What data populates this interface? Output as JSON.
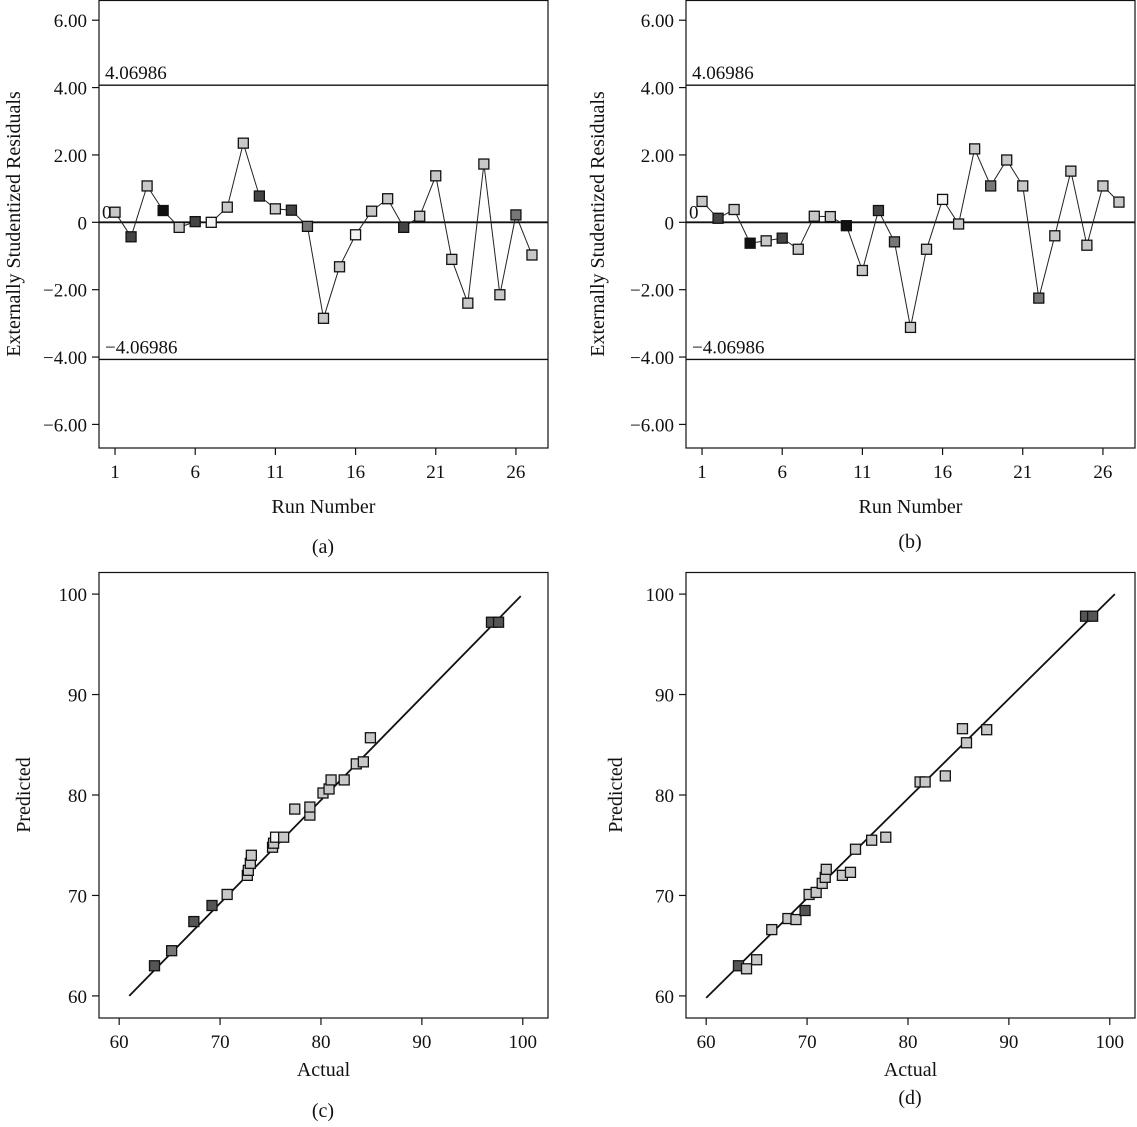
{
  "chart_data": [
    {
      "panel": "a",
      "type": "line",
      "caption": "(a)",
      "xlabel": "Run Number",
      "ylabel": "Externally Studentized Residuals",
      "xlim": [
        0,
        28
      ],
      "ylim": [
        -6.7,
        6.6
      ],
      "xticks": [
        1,
        6,
        11,
        16,
        21,
        26
      ],
      "xtick_labels": [
        "1",
        "6",
        "11",
        "16",
        "21",
        "26"
      ],
      "yticks": [
        6,
        4,
        2,
        0,
        -2,
        -4,
        -6
      ],
      "ytick_labels": [
        "6.00",
        "4.00",
        "2.00",
        "0",
        "-2.00",
        "-4.00",
        "-6.00"
      ],
      "upper_limit": 4.06986,
      "upper_label": "4.06986",
      "lower_limit": -4.06986,
      "lower_label": "−4.06986",
      "zero_label": "0",
      "x": [
        1,
        2,
        3,
        4,
        5,
        6,
        7,
        8,
        9,
        10,
        11,
        12,
        13,
        14,
        15,
        16,
        17,
        18,
        19,
        20,
        21,
        22,
        23,
        24,
        25,
        26,
        27
      ],
      "values": [
        0.3,
        -0.43,
        1.08,
        0.35,
        -0.15,
        0.02,
        0.0,
        0.45,
        2.35,
        0.78,
        0.4,
        0.36,
        -0.12,
        -2.85,
        -1.32,
        -0.37,
        0.33,
        0.7,
        -0.15,
        0.18,
        1.38,
        -1.1,
        -2.4,
        1.73,
        -2.15,
        0.22,
        -0.97
      ],
      "marker_shades": [
        "#c8c8c8",
        "#444444",
        "#c8c8c8",
        "#111111",
        "#c8c8c8",
        "#444444",
        "#f4f4f4",
        "#c8c8c8",
        "#c8c8c8",
        "#444444",
        "#c8c8c8",
        "#444444",
        "#777777",
        "#c8c8c8",
        "#c8c8c8",
        "#f4f4f4",
        "#c8c8c8",
        "#c8c8c8",
        "#444444",
        "#c8c8c8",
        "#c8c8c8",
        "#c8c8c8",
        "#c8c8c8",
        "#c8c8c8",
        "#c8c8c8",
        "#777777",
        "#c8c8c8"
      ]
    },
    {
      "panel": "b",
      "type": "line",
      "caption": "(b)",
      "xlabel": "Run Number",
      "ylabel": "Externally Studentized Residuals",
      "xlim": [
        0,
        28
      ],
      "ylim": [
        -6.7,
        6.6
      ],
      "xticks": [
        1,
        6,
        11,
        16,
        21,
        26
      ],
      "xtick_labels": [
        "1",
        "6",
        "11",
        "16",
        "21",
        "26"
      ],
      "yticks": [
        6,
        4,
        2,
        0,
        -2,
        -4,
        -6
      ],
      "ytick_labels": [
        "6.00",
        "4.00",
        "2.00",
        "0",
        "-2.00",
        "-4.00",
        "-6.00"
      ],
      "upper_limit": 4.06986,
      "upper_label": "4.06986",
      "lower_limit": -4.06986,
      "lower_label": "−4.06986",
      "zero_label": "0",
      "x": [
        1,
        2,
        3,
        4,
        5,
        6,
        7,
        8,
        9,
        10,
        11,
        12,
        13,
        14,
        15,
        16,
        17,
        18,
        19,
        20,
        21,
        22,
        23,
        24,
        25,
        26,
        27
      ],
      "values": [
        0.62,
        0.12,
        0.38,
        -0.62,
        -0.55,
        -0.47,
        -0.8,
        0.18,
        0.17,
        -0.1,
        -1.43,
        0.35,
        -0.58,
        -3.12,
        -0.8,
        0.68,
        -0.05,
        2.18,
        1.08,
        1.85,
        1.08,
        -2.25,
        -0.4,
        1.52,
        -0.68,
        1.08,
        0.6
      ],
      "marker_shades": [
        "#c8c8c8",
        "#444444",
        "#c8c8c8",
        "#111111",
        "#c8c8c8",
        "#444444",
        "#c8c8c8",
        "#c8c8c8",
        "#c8c8c8",
        "#111111",
        "#c8c8c8",
        "#444444",
        "#777777",
        "#c8c8c8",
        "#c8c8c8",
        "#f4f4f4",
        "#c8c8c8",
        "#c8c8c8",
        "#777777",
        "#c8c8c8",
        "#c8c8c8",
        "#777777",
        "#c8c8c8",
        "#c8c8c8",
        "#c8c8c8",
        "#c8c8c8",
        "#c8c8c8"
      ]
    },
    {
      "panel": "c",
      "type": "scatter",
      "caption": "(c)",
      "xlabel": "Actual",
      "ylabel": "Predicted",
      "xlim": [
        58,
        102.5
      ],
      "ylim": [
        57.8,
        102.2
      ],
      "xticks": [
        60,
        70,
        80,
        90,
        100
      ],
      "yticks": [
        60,
        70,
        80,
        90,
        100
      ],
      "line": [
        [
          61,
          60
        ],
        [
          99.8,
          99.8
        ]
      ],
      "points": [
        {
          "x": 63.5,
          "y": 63.0,
          "c": "#555555"
        },
        {
          "x": 65.2,
          "y": 64.5,
          "c": "#777777"
        },
        {
          "x": 67.4,
          "y": 67.4,
          "c": "#555555"
        },
        {
          "x": 69.2,
          "y": 69.0,
          "c": "#555555"
        },
        {
          "x": 70.7,
          "y": 70.1,
          "c": "#c8c8c8"
        },
        {
          "x": 72.7,
          "y": 72.0,
          "c": "#c8c8c8"
        },
        {
          "x": 72.8,
          "y": 72.5,
          "c": "#c8c8c8"
        },
        {
          "x": 73.0,
          "y": 73.2,
          "c": "#c8c8c8"
        },
        {
          "x": 73.1,
          "y": 74.0,
          "c": "#c8c8c8"
        },
        {
          "x": 75.2,
          "y": 74.8,
          "c": "#c8c8c8"
        },
        {
          "x": 75.3,
          "y": 75.2,
          "c": "#c8c8c8"
        },
        {
          "x": 75.5,
          "y": 75.8,
          "c": "#f4f4f4"
        },
        {
          "x": 76.3,
          "y": 75.8,
          "c": "#c8c8c8"
        },
        {
          "x": 77.4,
          "y": 78.6,
          "c": "#c8c8c8"
        },
        {
          "x": 78.9,
          "y": 78.0,
          "c": "#c8c8c8"
        },
        {
          "x": 78.9,
          "y": 78.8,
          "c": "#c8c8c8"
        },
        {
          "x": 80.2,
          "y": 80.2,
          "c": "#c8c8c8"
        },
        {
          "x": 80.8,
          "y": 80.6,
          "c": "#c8c8c8"
        },
        {
          "x": 81.0,
          "y": 81.5,
          "c": "#c8c8c8"
        },
        {
          "x": 82.3,
          "y": 81.5,
          "c": "#c8c8c8"
        },
        {
          "x": 83.5,
          "y": 83.1,
          "c": "#c8c8c8"
        },
        {
          "x": 84.2,
          "y": 83.3,
          "c": "#c8c8c8"
        },
        {
          "x": 84.9,
          "y": 85.7,
          "c": "#c8c8c8"
        },
        {
          "x": 96.9,
          "y": 97.2,
          "c": "#555555"
        },
        {
          "x": 97.6,
          "y": 97.2,
          "c": "#555555"
        }
      ]
    },
    {
      "panel": "d",
      "type": "scatter",
      "caption": "(d)",
      "xlabel": "Actual",
      "ylabel": "Predicted",
      "xlim": [
        58,
        102.5
      ],
      "ylim": [
        57.8,
        102.2
      ],
      "xticks": [
        60,
        70,
        80,
        90,
        100
      ],
      "yticks": [
        60,
        70,
        80,
        90,
        100
      ],
      "line": [
        [
          60,
          59.8
        ],
        [
          100.5,
          100
        ]
      ],
      "points": [
        {
          "x": 63.2,
          "y": 63.0,
          "c": "#555555"
        },
        {
          "x": 64.0,
          "y": 62.7,
          "c": "#c8c8c8"
        },
        {
          "x": 65.0,
          "y": 63.6,
          "c": "#c8c8c8"
        },
        {
          "x": 66.5,
          "y": 66.6,
          "c": "#c8c8c8"
        },
        {
          "x": 68.1,
          "y": 67.7,
          "c": "#c8c8c8"
        },
        {
          "x": 68.9,
          "y": 67.6,
          "c": "#c8c8c8"
        },
        {
          "x": 69.8,
          "y": 68.5,
          "c": "#555555"
        },
        {
          "x": 70.2,
          "y": 70.1,
          "c": "#c8c8c8"
        },
        {
          "x": 70.9,
          "y": 70.3,
          "c": "#c8c8c8"
        },
        {
          "x": 71.5,
          "y": 71.2,
          "c": "#c8c8c8"
        },
        {
          "x": 71.8,
          "y": 71.8,
          "c": "#c8c8c8"
        },
        {
          "x": 71.9,
          "y": 72.6,
          "c": "#c8c8c8"
        },
        {
          "x": 73.5,
          "y": 72.0,
          "c": "#c8c8c8"
        },
        {
          "x": 74.3,
          "y": 72.3,
          "c": "#c8c8c8"
        },
        {
          "x": 74.8,
          "y": 74.6,
          "c": "#c8c8c8"
        },
        {
          "x": 76.4,
          "y": 75.5,
          "c": "#c8c8c8"
        },
        {
          "x": 77.8,
          "y": 75.8,
          "c": "#c8c8c8"
        },
        {
          "x": 81.2,
          "y": 81.3,
          "c": "#c8c8c8"
        },
        {
          "x": 81.7,
          "y": 81.3,
          "c": "#c8c8c8"
        },
        {
          "x": 83.7,
          "y": 81.9,
          "c": "#c8c8c8"
        },
        {
          "x": 85.4,
          "y": 86.6,
          "c": "#c8c8c8"
        },
        {
          "x": 85.8,
          "y": 85.2,
          "c": "#c8c8c8"
        },
        {
          "x": 87.8,
          "y": 86.5,
          "c": "#c8c8c8"
        },
        {
          "x": 97.6,
          "y": 97.8,
          "c": "#555555"
        },
        {
          "x": 98.3,
          "y": 97.8,
          "c": "#555555"
        }
      ]
    }
  ]
}
